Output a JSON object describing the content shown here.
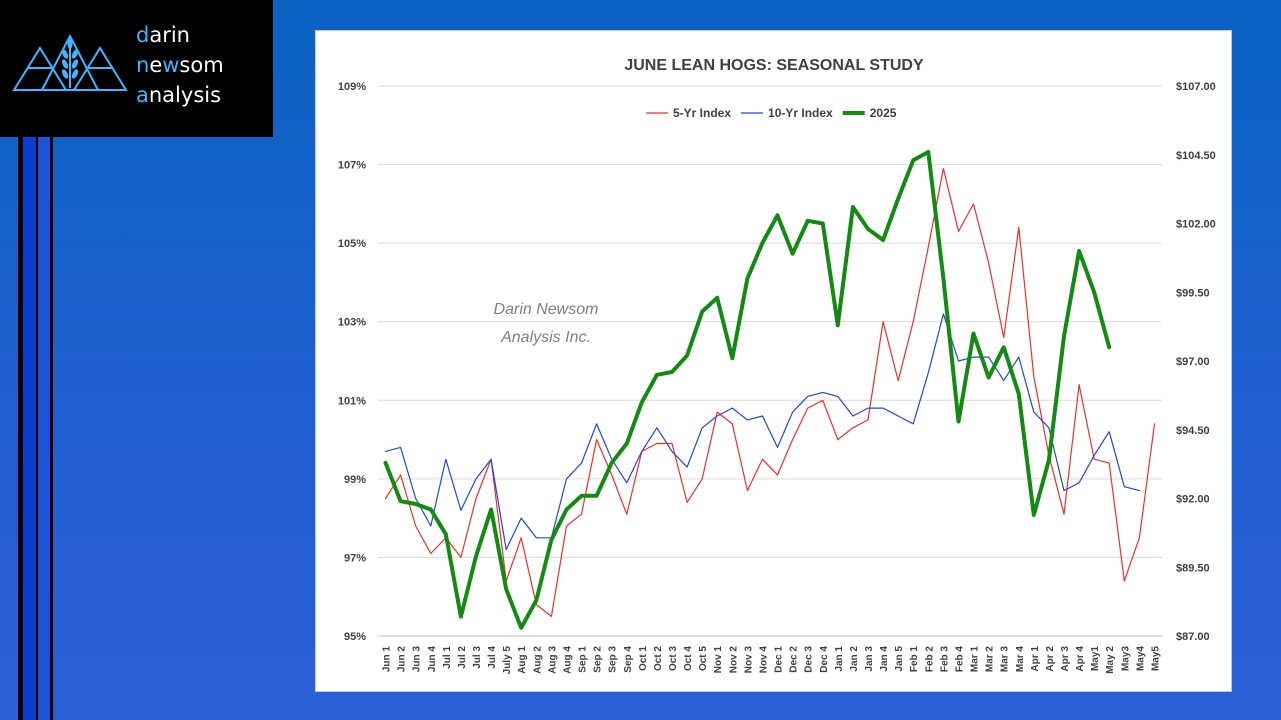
{
  "logo": {
    "line1_hl": "d",
    "line1_rest": "arin",
    "line2_hl": "n",
    "line2_mid1": "e",
    "line2_hl2": "w",
    "line2_rest": "som",
    "line3_hl": "a",
    "line3_rest": "nalysis"
  },
  "chart_data": {
    "type": "line",
    "title": "JUNE LEAN HOGS: SEASONAL STUDY",
    "watermark": [
      "Darin Newsom",
      "Analysis Inc."
    ],
    "legend_position": "top-center",
    "grid": "horizontal",
    "categories": [
      "Jun 1",
      "Jun 2",
      "Jun 3",
      "Jun 4",
      "Jul 1",
      "Jul 2",
      "Jul 3",
      "Jul 4",
      "July 5",
      "Aug 1",
      "Aug 2",
      "Aug 3",
      "Aug 4",
      "Sep 1",
      "Sep 2",
      "Sep 3",
      "Sep 4",
      "Oct 1",
      "Oct 2",
      "Oct 3",
      "Oct 4",
      "Oct 5",
      "Nov 1",
      "Nov 2",
      "Nov 3",
      "Nov 4",
      "Dec 1",
      "Dec 2",
      "Dec 3",
      "Dec 4",
      "Jan 1",
      "Jan 2",
      "Jan 3",
      "Jan 4",
      "Jan 5",
      "Feb 1",
      "Feb 2",
      "Feb 3",
      "Feb 4",
      "Mar 1",
      "Mar 2",
      "Mar 3",
      "Mar 4",
      "Apr 1",
      "Apr 2",
      "Apr 3",
      "Apr 4",
      "May1",
      "May 2",
      "May3",
      "May4",
      "May5"
    ],
    "y_left": {
      "min": 95,
      "max": 109,
      "ticks": [
        95,
        97,
        99,
        101,
        103,
        105,
        107,
        109
      ],
      "tick_labels": [
        "95%",
        "97%",
        "99%",
        "101%",
        "103%",
        "105%",
        "107%",
        "109%"
      ]
    },
    "y_right": {
      "min": 87.0,
      "max": 107.0,
      "ticks": [
        87.0,
        89.5,
        92.0,
        94.5,
        97.0,
        99.5,
        102.0,
        104.5,
        107.0
      ],
      "tick_labels": [
        "$87.00",
        "$89.50",
        "$92.00",
        "$94.50",
        "$97.00",
        "$99.50",
        "$102.00",
        "$104.50",
        "$107.00"
      ]
    },
    "series": [
      {
        "name": "5-Yr Index",
        "color": "#e8322c",
        "axis": "left",
        "width": 1.2,
        "values": [
          98.5,
          99.1,
          97.8,
          97.1,
          97.5,
          97.0,
          98.5,
          99.5,
          96.4,
          97.5,
          95.8,
          95.5,
          97.8,
          98.1,
          100.0,
          99.1,
          98.1,
          99.7,
          99.9,
          99.9,
          98.4,
          99.0,
          100.7,
          100.4,
          98.7,
          99.5,
          99.1,
          100.0,
          100.8,
          101.0,
          100.0,
          100.3,
          100.5,
          103.0,
          101.5,
          103.0,
          104.9,
          106.9,
          105.3,
          106.0,
          104.5,
          102.6,
          105.4,
          101.6,
          99.6,
          98.1,
          101.4,
          99.5,
          99.4,
          96.4,
          97.5,
          100.4
        ]
      },
      {
        "name": "10-Yr Index",
        "color": "#2447d6",
        "axis": "left",
        "width": 1.2,
        "values": [
          99.7,
          99.8,
          98.5,
          97.8,
          99.5,
          98.2,
          99.0,
          99.5,
          97.2,
          98.0,
          97.5,
          97.5,
          99.0,
          99.4,
          100.4,
          99.5,
          98.9,
          99.7,
          100.3,
          99.7,
          99.3,
          100.3,
          100.6,
          100.8,
          100.5,
          100.6,
          99.8,
          100.7,
          101.1,
          101.2,
          101.1,
          100.6,
          100.8,
          100.8,
          100.6,
          100.4,
          101.7,
          103.2,
          102.0,
          102.1,
          102.1,
          101.5,
          102.1,
          100.7,
          100.3,
          98.7,
          98.9,
          99.6,
          100.2,
          98.8,
          98.7,
          null
        ]
      },
      {
        "name": "2025",
        "color": "#138a12",
        "axis": "right",
        "width": 4,
        "values": [
          93.3,
          91.9,
          91.8,
          91.6,
          90.7,
          87.7,
          89.9,
          91.6,
          88.7,
          87.3,
          88.3,
          90.5,
          91.6,
          92.1,
          92.1,
          93.3,
          94.0,
          95.5,
          96.5,
          96.6,
          97.2,
          98.8,
          99.3,
          97.1,
          100.0,
          101.3,
          102.3,
          100.9,
          102.1,
          102.0,
          98.3,
          102.6,
          101.8,
          101.4,
          102.9,
          104.3,
          104.6,
          100.0,
          94.8,
          98.0,
          96.4,
          97.5,
          95.8,
          91.4,
          93.4,
          97.9,
          101.0,
          99.5,
          97.5,
          null,
          null,
          null
        ]
      }
    ]
  }
}
